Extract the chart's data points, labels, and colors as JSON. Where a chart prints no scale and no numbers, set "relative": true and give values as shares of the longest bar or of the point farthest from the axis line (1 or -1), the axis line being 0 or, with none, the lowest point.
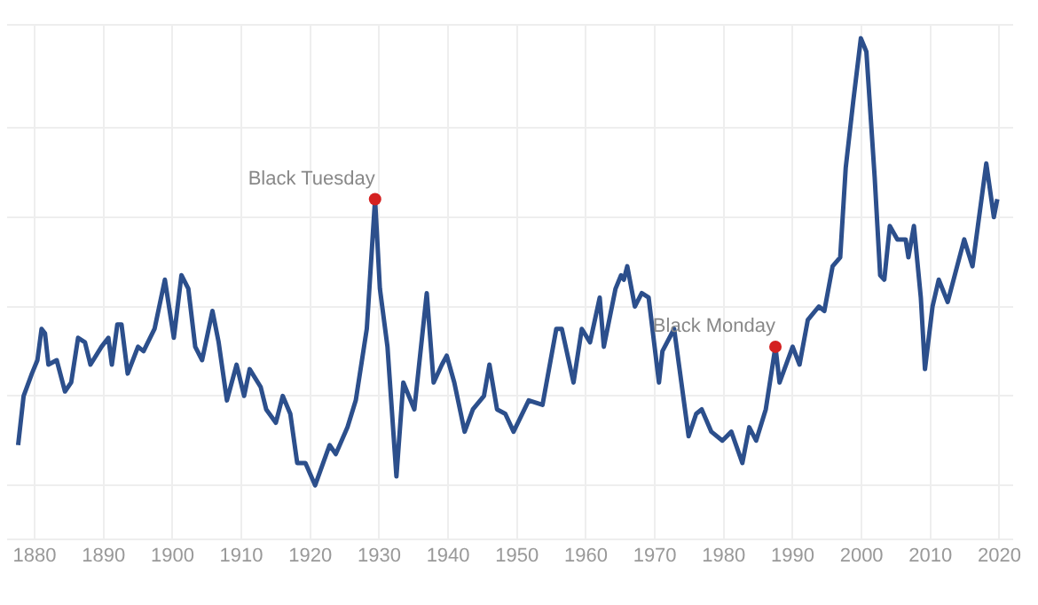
{
  "chart_data": {
    "type": "line",
    "relative": true,
    "grid": true,
    "marker": "none",
    "line_style": "solid",
    "xlim": [
      1876,
      2022
    ],
    "xticks": [
      1880,
      1890,
      1900,
      1910,
      1920,
      1930,
      1940,
      1950,
      1960,
      1970,
      1980,
      1990,
      2000,
      2010,
      2020
    ],
    "series": [
      {
        "color": "#2c4f8c",
        "x": [
          1877.6,
          1878.4,
          1879.6,
          1880.4,
          1881.0,
          1881.5,
          1882.0,
          1883.2,
          1884.4,
          1885.3,
          1886.3,
          1887.3,
          1888.1,
          1889.7,
          1890.7,
          1891.2,
          1892.0,
          1892.6,
          1893.5,
          1895.0,
          1895.8,
          1897.4,
          1898.9,
          1900.2,
          1901.3,
          1902.3,
          1903.3,
          1904.3,
          1905.8,
          1906.7,
          1907.9,
          1909.3,
          1910.4,
          1911.2,
          1912.8,
          1913.6,
          1915.0,
          1916.0,
          1917.1,
          1918.1,
          1919.3,
          1920.7,
          1922.8,
          1923.7,
          1925.4,
          1926.6,
          1928.2,
          1929.4,
          1930.1,
          1931.2,
          1932.5,
          1933.5,
          1935.1,
          1936.9,
          1937.9,
          1939.1,
          1939.8,
          1940.9,
          1942.4,
          1943.6,
          1945.2,
          1946.0,
          1947.1,
          1948.3,
          1949.5,
          1951.7,
          1953.7,
          1955.7,
          1956.5,
          1958.2,
          1959.4,
          1960.6,
          1962.0,
          1962.6,
          1964.3,
          1965.1,
          1965.5,
          1966.0,
          1967.1,
          1968.1,
          1969.1,
          1970.6,
          1971.1,
          1972.8,
          1974.9,
          1976.0,
          1976.8,
          1978.2,
          1979.8,
          1981.1,
          1982.7,
          1983.7,
          1984.7,
          1986.1,
          1987.5,
          1988.1,
          1990.0,
          1991.0,
          1992.2,
          1993.8,
          1994.6,
          1995.8,
          1996.9,
          1997.7,
          1998.8,
          1999.9,
          2000.7,
          2001.9,
          2002.7,
          2003.3,
          2004.1,
          2005.2,
          2006.4,
          2006.8,
          2007.6,
          2008.6,
          2009.2,
          2010.3,
          2011.2,
          2012.5,
          2014.9,
          2016.1,
          2018.1,
          2019.2,
          2019.7
        ],
        "values": [
          0.09,
          0.2,
          0.25,
          0.28,
          0.35,
          0.34,
          0.27,
          0.28,
          0.21,
          0.23,
          0.33,
          0.32,
          0.27,
          0.31,
          0.33,
          0.27,
          0.36,
          0.36,
          0.25,
          0.31,
          0.3,
          0.35,
          0.46,
          0.33,
          0.47,
          0.44,
          0.31,
          0.28,
          0.39,
          0.32,
          0.19,
          0.27,
          0.2,
          0.26,
          0.22,
          0.17,
          0.14,
          0.2,
          0.16,
          0.05,
          0.05,
          0,
          0.09,
          0.07,
          0.13,
          0.19,
          0.35,
          0.64,
          0.44,
          0.31,
          0.02,
          0.23,
          0.17,
          0.43,
          0.23,
          0.27,
          0.29,
          0.23,
          0.12,
          0.17,
          0.2,
          0.27,
          0.17,
          0.16,
          0.12,
          0.19,
          0.18,
          0.35,
          0.35,
          0.23,
          0.35,
          0.32,
          0.42,
          0.31,
          0.44,
          0.47,
          0.46,
          0.49,
          0.4,
          0.43,
          0.42,
          0.23,
          0.3,
          0.35,
          0.11,
          0.16,
          0.17,
          0.12,
          0.1,
          0.12,
          0.05,
          0.13,
          0.1,
          0.17,
          0.31,
          0.23,
          0.31,
          0.27,
          0.37,
          0.4,
          0.39,
          0.49,
          0.51,
          0.71,
          0.86,
          1,
          0.97,
          0.69,
          0.47,
          0.46,
          0.58,
          0.55,
          0.55,
          0.51,
          0.58,
          0.42,
          0.26,
          0.4,
          0.46,
          0.41,
          0.55,
          0.49,
          0.72,
          0.6,
          0.64
        ]
      },
      {
        "type": "scatter",
        "color": "#d42020",
        "marker": "circle",
        "x": [
          1929.4,
          1987.5
        ],
        "values": [
          0.64,
          0.31
        ]
      }
    ],
    "annotations": [
      {
        "text": "Black Tuesday",
        "x": 1929.4,
        "y": 0.64
      },
      {
        "text": "Black Monday",
        "x": 1987.5,
        "y": 0.31
      }
    ]
  }
}
